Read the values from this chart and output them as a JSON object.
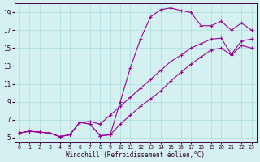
{
  "title": "",
  "xlabel": "Windchill (Refroidissement éolien,°C)",
  "bg_color": "#d4f0f0",
  "grid_color": "#aadddd",
  "line_color": "#990099",
  "xlim": [
    -0.5,
    23.5
  ],
  "ylim": [
    4.5,
    20
  ],
  "xticks": [
    0,
    1,
    2,
    3,
    4,
    5,
    6,
    7,
    8,
    9,
    10,
    11,
    12,
    13,
    14,
    15,
    16,
    17,
    18,
    19,
    20,
    21,
    22,
    23
  ],
  "yticks": [
    5,
    7,
    9,
    11,
    13,
    15,
    17,
    19
  ],
  "series": [
    {
      "x": [
        0,
        1,
        2,
        3,
        4,
        5,
        6,
        7,
        8,
        9,
        10,
        11,
        12,
        13,
        14,
        15,
        16,
        17,
        18,
        19,
        20,
        21,
        22,
        23
      ],
      "y": [
        5.5,
        5.7,
        5.6,
        5.5,
        5.1,
        5.3,
        6.7,
        6.5,
        5.2,
        5.3,
        9.0,
        12.8,
        16.0,
        18.5,
        19.3,
        19.5,
        19.2,
        19.0,
        17.5,
        17.5,
        18.0,
        17.0,
        17.8,
        17.0
      ]
    },
    {
      "x": [
        0,
        1,
        2,
        3,
        4,
        5,
        6,
        7,
        8,
        9,
        10,
        11,
        12,
        13,
        14,
        15,
        16,
        17,
        18,
        19,
        20,
        21,
        22,
        23
      ],
      "y": [
        5.5,
        5.7,
        5.6,
        5.5,
        5.1,
        5.3,
        6.7,
        6.8,
        6.5,
        7.5,
        8.5,
        9.5,
        10.5,
        11.5,
        12.5,
        13.5,
        14.2,
        15.0,
        15.5,
        16.0,
        16.1,
        14.3,
        15.8,
        16.0
      ]
    },
    {
      "x": [
        0,
        1,
        2,
        3,
        4,
        5,
        6,
        7,
        8,
        9,
        10,
        11,
        12,
        13,
        14,
        15,
        16,
        17,
        18,
        19,
        20,
        21,
        22,
        23
      ],
      "y": [
        5.5,
        5.7,
        5.6,
        5.5,
        5.1,
        5.3,
        6.7,
        6.5,
        5.2,
        5.3,
        6.5,
        7.5,
        8.5,
        9.3,
        10.2,
        11.3,
        12.3,
        13.2,
        14.0,
        14.8,
        15.0,
        14.2,
        15.3,
        15.0
      ]
    }
  ]
}
